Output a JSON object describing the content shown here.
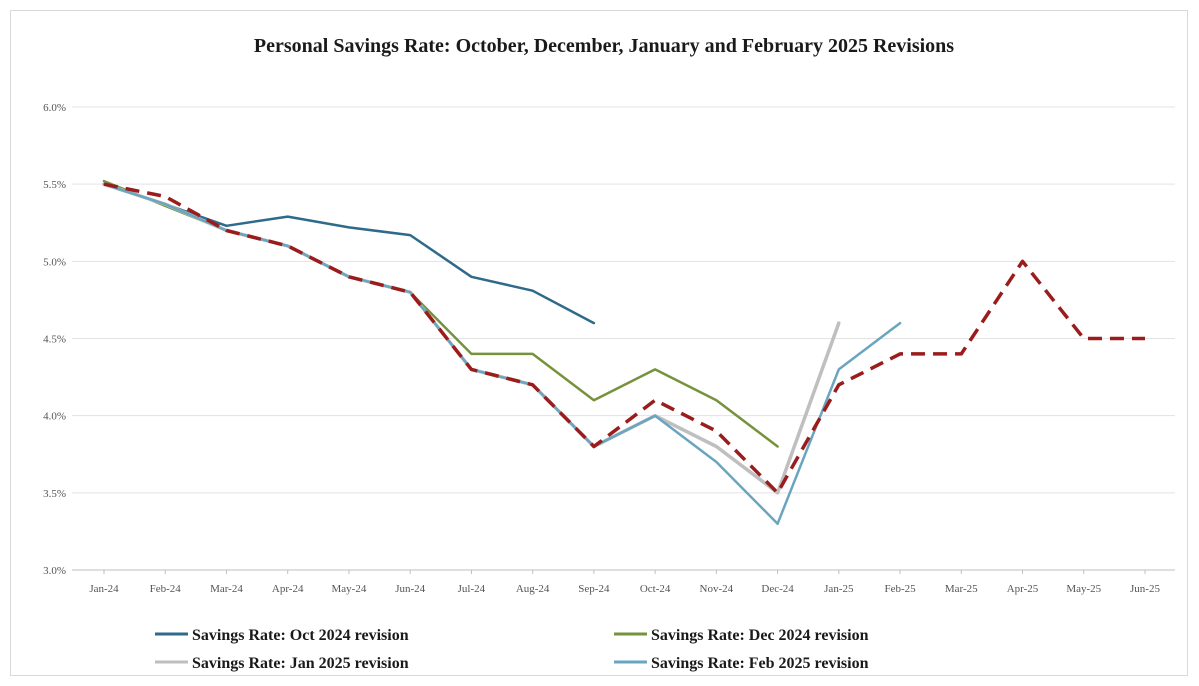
{
  "chart_data": {
    "type": "line",
    "title": "Personal Savings Rate: October, December, January and February 2025 Revisions",
    "xlabel": "",
    "ylabel": "",
    "categories": [
      "Jan-24",
      "Feb-24",
      "Mar-24",
      "Apr-24",
      "May-24",
      "Jun-24",
      "Jul-24",
      "Aug-24",
      "Sep-24",
      "Oct-24",
      "Nov-24",
      "Dec-24",
      "Jan-25",
      "Feb-25",
      "Mar-25",
      "Apr-25",
      "May-25",
      "Jun-25"
    ],
    "ylim": [
      3.0,
      6.0
    ],
    "yticks": [
      3.0,
      3.5,
      4.0,
      4.5,
      5.0,
      5.5,
      6.0
    ],
    "ytick_labels": [
      "3.0%",
      "3.5%",
      "4.0%",
      "4.5%",
      "5.0%",
      "5.5%",
      "6.0%"
    ],
    "grid": true,
    "legend_position": "bottom",
    "series": [
      {
        "name": "Savings Rate: Oct 2024 revision",
        "color": "#2e6a8a",
        "style": "solid",
        "values": [
          5.5,
          5.37,
          5.23,
          5.29,
          5.22,
          5.17,
          4.9,
          4.81,
          4.6,
          null,
          null,
          null,
          null,
          null,
          null,
          null,
          null,
          null
        ]
      },
      {
        "name": "Savings Rate: Dec 2024 revision",
        "color": "#76923c",
        "style": "solid",
        "values": [
          5.52,
          5.36,
          5.2,
          5.1,
          4.9,
          4.8,
          4.4,
          4.4,
          4.1,
          4.3,
          4.1,
          3.8,
          null,
          null,
          null,
          null,
          null,
          null
        ]
      },
      {
        "name": "Savings Rate: Jan 2025 revision",
        "color": "#bfbfbf",
        "style": "solid",
        "values": [
          5.5,
          5.37,
          5.2,
          5.1,
          4.9,
          4.8,
          4.3,
          4.2,
          3.8,
          4.0,
          3.8,
          3.5,
          4.6,
          null,
          null,
          null,
          null,
          null
        ]
      },
      {
        "name": "Savings Rate: Feb 2025 revision",
        "color": "#6aa5c0",
        "style": "solid",
        "values": [
          5.5,
          5.37,
          5.2,
          5.1,
          4.9,
          4.8,
          4.3,
          4.2,
          3.8,
          4.0,
          3.7,
          3.3,
          4.3,
          4.6,
          null,
          null,
          null,
          null
        ]
      },
      {
        "name": "",
        "color": "#9b1c1c",
        "style": "dashed",
        "values": [
          5.5,
          5.42,
          5.2,
          5.1,
          4.9,
          4.8,
          4.3,
          4.2,
          3.8,
          4.1,
          3.9,
          3.5,
          4.2,
          4.4,
          4.4,
          5.0,
          4.5,
          4.5
        ]
      }
    ]
  }
}
